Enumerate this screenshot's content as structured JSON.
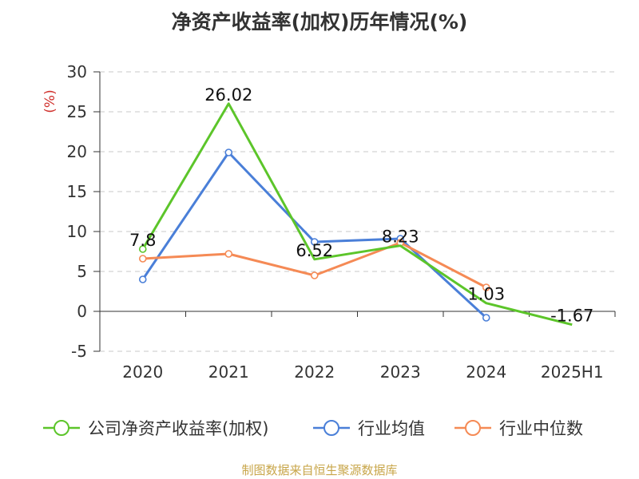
{
  "chart_data": {
    "type": "line",
    "title": "净资产收益率(加权)历年情况(%)",
    "ylabel": "(%)",
    "xlabel": "",
    "categories": [
      "2020",
      "2021",
      "2022",
      "2023",
      "2024",
      "2025H1"
    ],
    "ylim": [
      -5,
      30
    ],
    "yticks": [
      -5,
      0,
      5,
      10,
      15,
      20,
      25,
      30
    ],
    "grid": true,
    "legend": "bottom",
    "series": [
      {
        "name": "公司净资产收益率(加权)",
        "color": "#5cc52a",
        "values": [
          7.8,
          26.02,
          6.52,
          8.23,
          1.03,
          -1.67
        ],
        "labels": [
          "7.8",
          "26.02",
          "6.52",
          "8.23",
          "1.03",
          "-1.67"
        ]
      },
      {
        "name": "行业均值",
        "color": "#4a7fd8",
        "values": [
          4.0,
          19.9,
          8.7,
          9.1,
          -0.8,
          null
        ]
      },
      {
        "name": "行业中位数",
        "color": "#f58a55",
        "values": [
          6.6,
          7.2,
          4.5,
          8.6,
          3.0,
          null
        ]
      }
    ]
  },
  "source_note": "制图数据来自恒生聚源数据库"
}
